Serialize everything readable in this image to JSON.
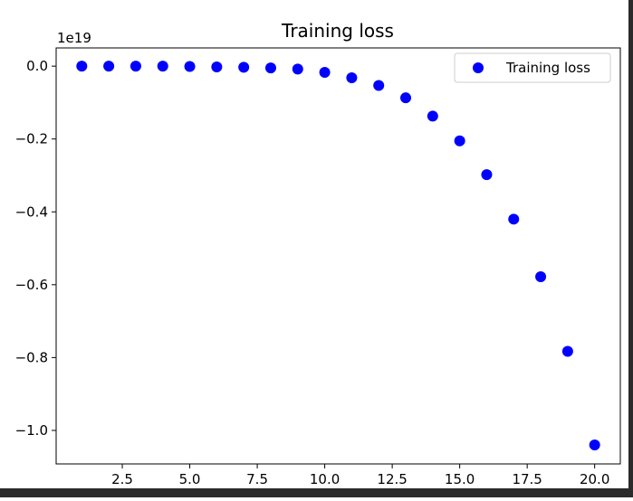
{
  "chart_data": {
    "type": "scatter",
    "title": "Training loss",
    "xlabel": "",
    "ylabel": "",
    "y_offset_label": "1e19",
    "xlim": [
      0.05,
      20.95
    ],
    "ylim": [
      -1.092,
      0.05
    ],
    "x_ticks": [
      2.5,
      5.0,
      7.5,
      10.0,
      12.5,
      15.0,
      17.5,
      20.0
    ],
    "x_tick_labels": [
      "2.5",
      "5.0",
      "7.5",
      "10.0",
      "12.5",
      "15.0",
      "17.5",
      "20.0"
    ],
    "y_ticks": [
      0.0,
      -0.2,
      -0.4,
      -0.6,
      -0.8,
      -1.0
    ],
    "y_tick_labels": [
      "0.0",
      "−0.2",
      "−0.4",
      "−0.6",
      "−0.8",
      "−1.0"
    ],
    "grid": false,
    "legend_position": "top-right",
    "series": [
      {
        "name": "Training loss",
        "marker": "o",
        "color": "#0000ff",
        "x": [
          1,
          2,
          3,
          4,
          5,
          6,
          7,
          8,
          9,
          10,
          11,
          12,
          13,
          14,
          15,
          16,
          17,
          18,
          19,
          20
        ],
        "y": [
          0.0,
          0.0,
          0.0,
          0.0,
          -0.001,
          -0.002,
          -0.003,
          -0.005,
          -0.008,
          -0.017,
          -0.032,
          -0.053,
          -0.087,
          -0.137,
          -0.205,
          -0.298,
          -0.42,
          -0.578,
          -0.783,
          -1.04
        ]
      }
    ]
  }
}
